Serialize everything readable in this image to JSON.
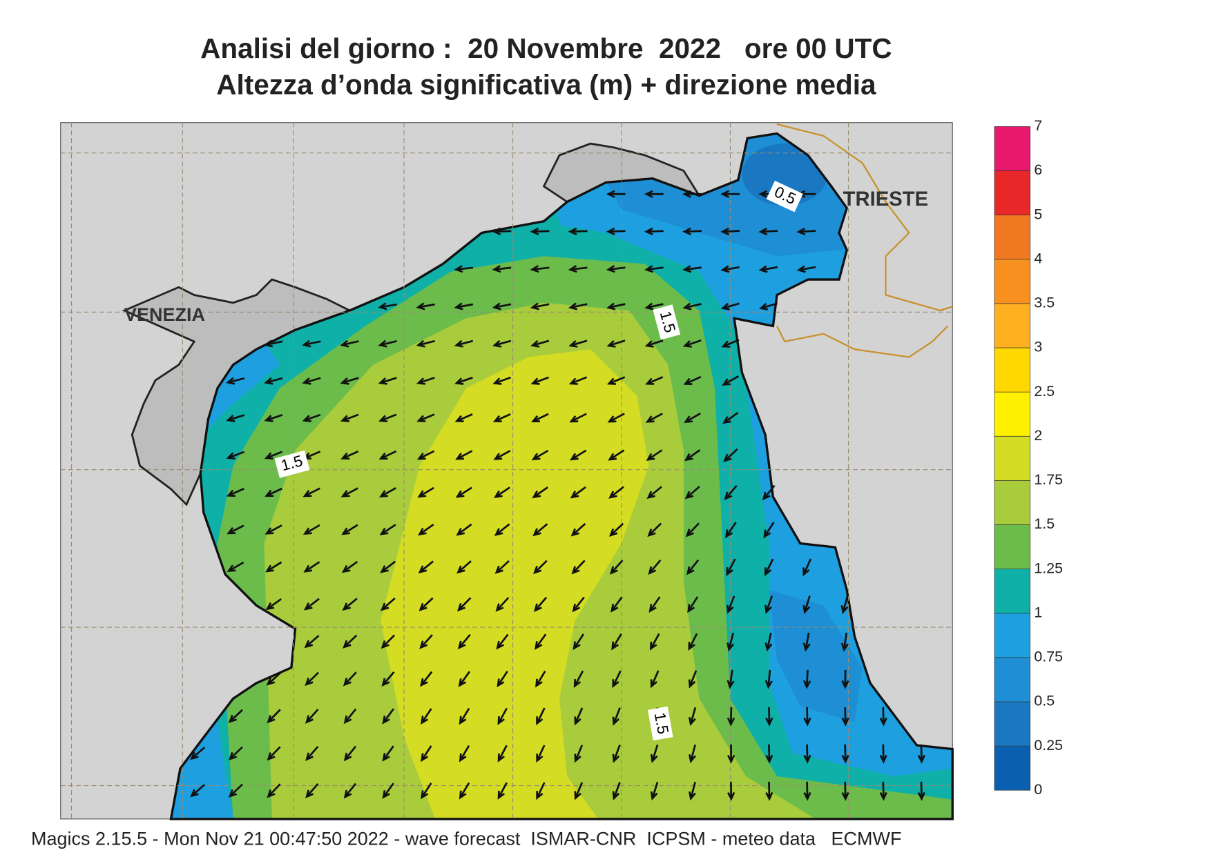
{
  "title_lines": [
    "Analisi del giorno :  20 Novembre  2022   ore 00 UTC",
    "Altezza d’onda significativa (m) + direzione media"
  ],
  "map_labels": [
    "VENEZIA",
    "TRIESTE"
  ],
  "contour_labels": [
    "0.5",
    "1.5",
    "1.5",
    "1.5"
  ],
  "colorbar": {
    "levels": [
      0,
      0.25,
      0.5,
      0.75,
      1,
      1.25,
      1.5,
      1.75,
      2,
      2.5,
      3,
      3.5,
      4,
      5,
      6,
      7
    ],
    "colors": [
      "#0a5fb0",
      "#1a78c2",
      "#1e8fd4",
      "#1ea0e0",
      "#0fb0a8",
      "#6cbc4c",
      "#a8cc3c",
      "#d4dc24",
      "#fff000",
      "#ffd800",
      "#ffb020",
      "#f89020",
      "#f07820",
      "#e82828",
      "#e8186c"
    ]
  },
  "footer": "Magics 2.15.5 - Mon Nov 21 00:47:50 2022 - wave forecast  ISMAR-CNR  ICPSM - meteo data   ECMWF"
}
